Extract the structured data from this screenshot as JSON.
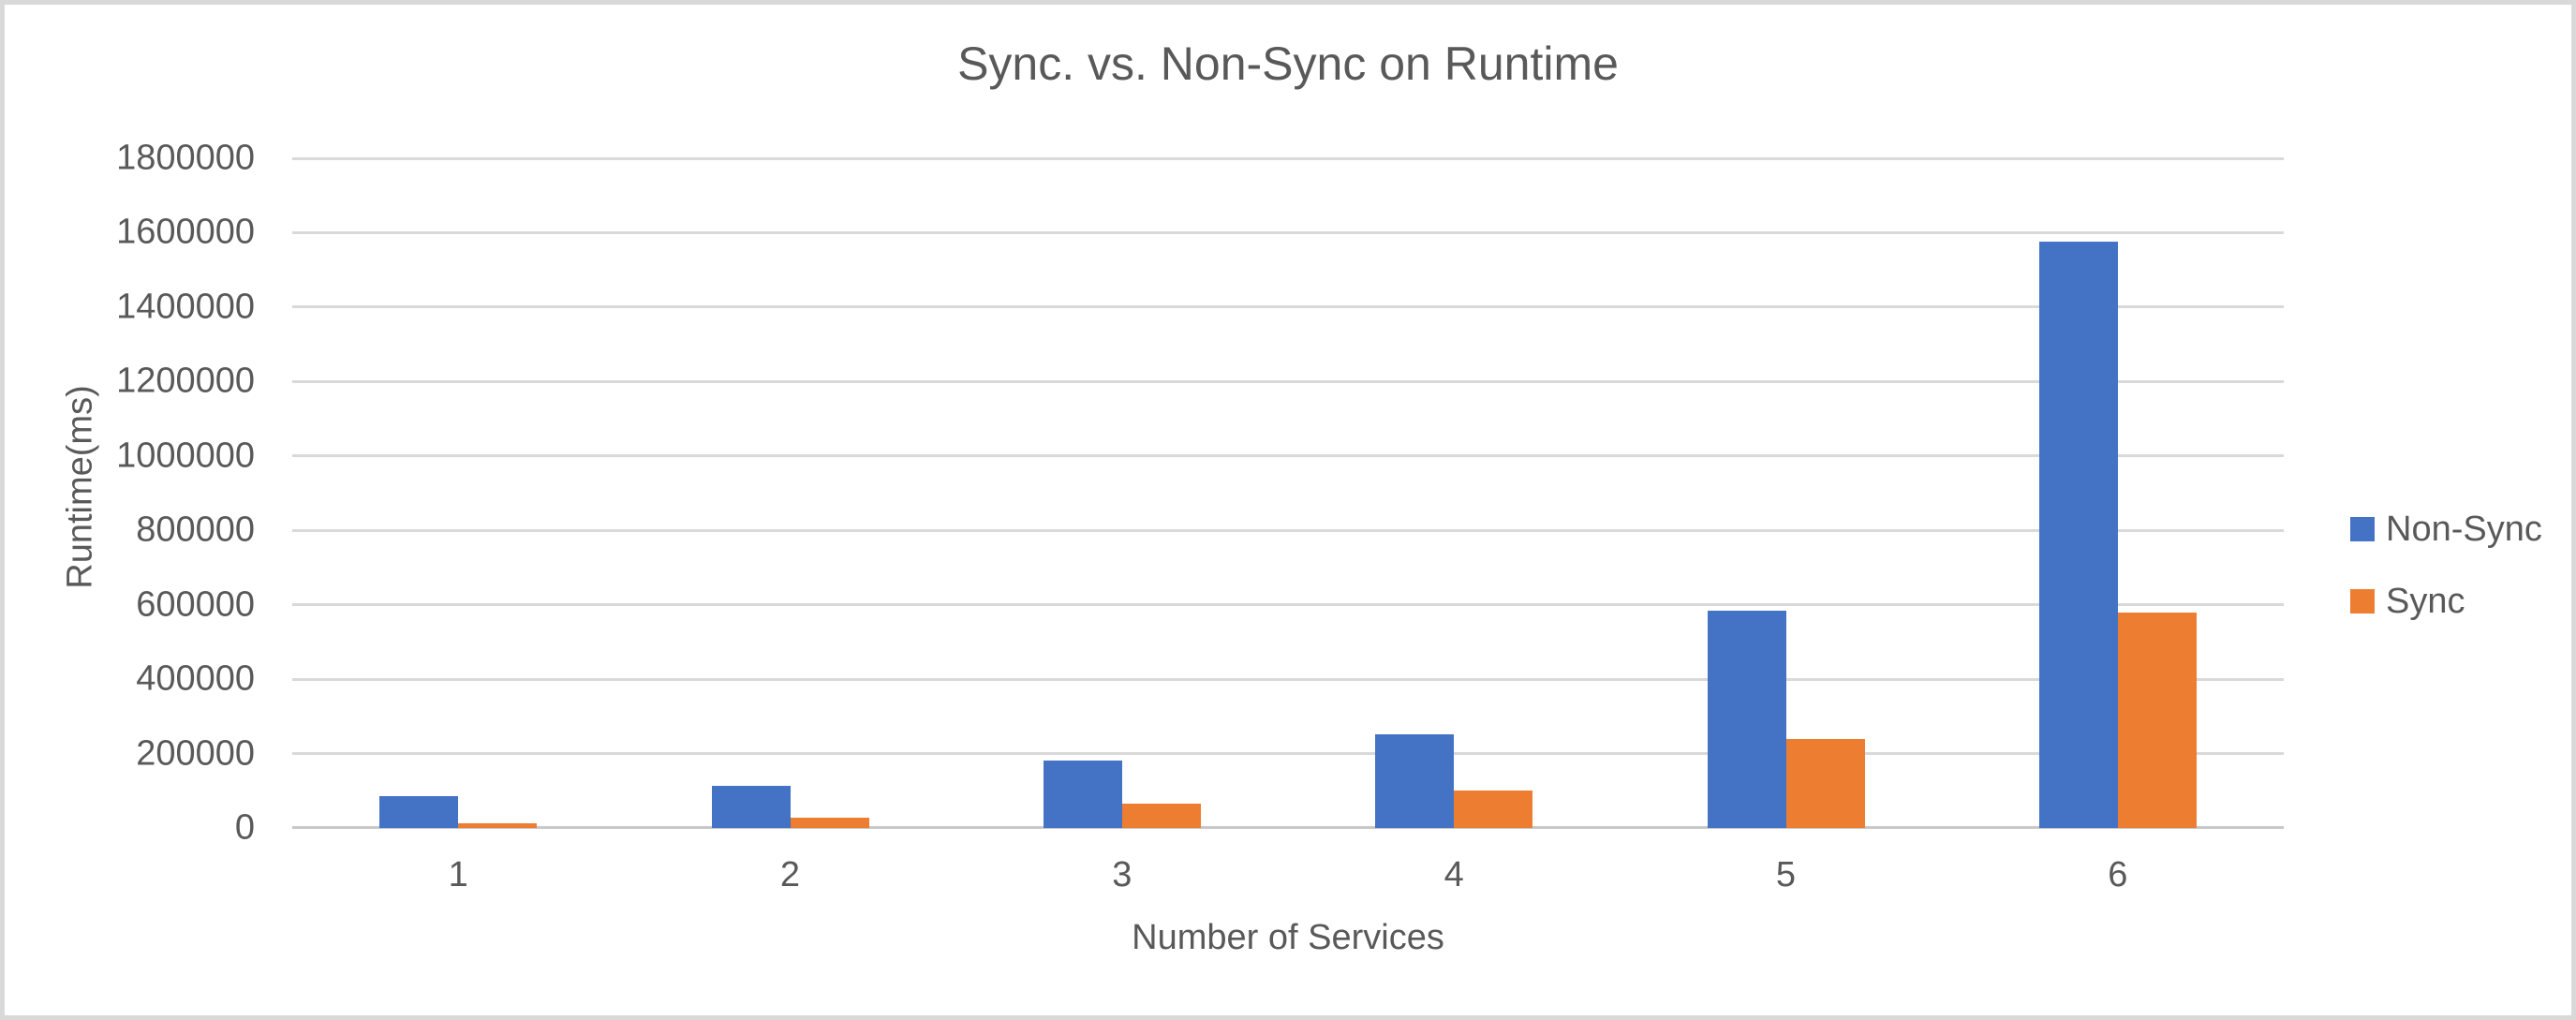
{
  "chart_data": {
    "type": "bar",
    "title": "Sync. vs. Non-Sync on Runtime",
    "xlabel": "Number of Services",
    "ylabel": "Runtime(ms)",
    "categories": [
      "1",
      "2",
      "3",
      "4",
      "5",
      "6"
    ],
    "series": [
      {
        "name": "Non-Sync",
        "color": "#4472C4",
        "values": [
          86000,
          113000,
          181000,
          252000,
          584000,
          1577000
        ]
      },
      {
        "name": "Sync",
        "color": "#ED7D31",
        "values": [
          13000,
          28000,
          66000,
          101000,
          239000,
          579000
        ]
      }
    ],
    "ylim": [
      0,
      1800000
    ],
    "ytick_step": 200000,
    "ytick_labels": [
      "0",
      "200000",
      "400000",
      "600000",
      "800000",
      "1000000",
      "1200000",
      "1400000",
      "1600000",
      "1800000"
    ],
    "grid": true,
    "legend_position": "right"
  },
  "colors": {
    "background": "#FFFFFF",
    "frame_border": "#D9D9D9",
    "gridline": "#D9D9D9",
    "axis_line": "#C8C8C8",
    "text": "#595959"
  }
}
